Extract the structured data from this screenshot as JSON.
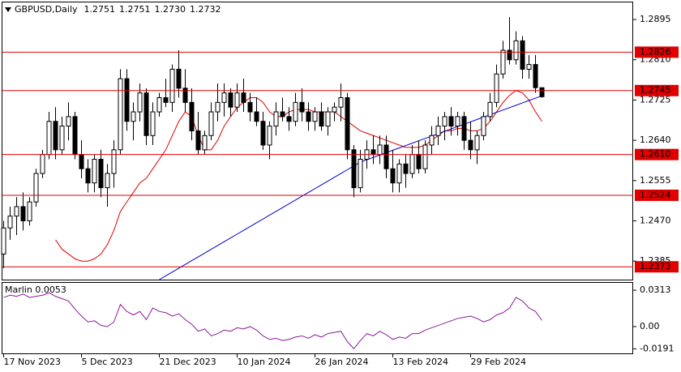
{
  "chart_data": [
    {
      "type": "candlestick",
      "title": "GBPUSD,Daily",
      "title_values": [
        "1.2751",
        "1.2751",
        "1.2730",
        "1.2732"
      ],
      "categories": [
        "17 Nov 2023",
        null,
        null,
        null,
        null,
        null,
        null,
        null,
        null,
        null,
        null,
        null,
        "5 Dec 2023",
        null,
        null,
        null,
        null,
        null,
        null,
        null,
        null,
        null,
        null,
        null,
        "21 Dec 2023",
        null,
        null,
        null,
        null,
        null,
        null,
        null,
        null,
        null,
        null,
        null,
        "10 Jan 2024",
        null,
        null,
        null,
        null,
        null,
        null,
        null,
        null,
        null,
        null,
        null,
        "26 Jan 2024",
        null,
        null,
        null,
        null,
        null,
        null,
        null,
        null,
        null,
        null,
        null,
        "13 Feb 2024",
        null,
        null,
        null,
        null,
        null,
        null,
        null,
        null,
        null,
        null,
        null,
        "29 Feb 2024",
        null,
        null,
        null,
        null,
        null,
        null,
        null,
        null,
        null,
        null,
        null
      ],
      "ohlc": [
        [
          1.24,
          1.247,
          1.237,
          1.2455
        ],
        [
          1.2455,
          1.25,
          1.243,
          1.248
        ],
        [
          1.248,
          1.252,
          1.244,
          1.25
        ],
        [
          1.25,
          1.253,
          1.245,
          1.247
        ],
        [
          1.247,
          1.252,
          1.246,
          1.251
        ],
        [
          1.251,
          1.258,
          1.25,
          1.257
        ],
        [
          1.257,
          1.262,
          1.256,
          1.261
        ],
        [
          1.261,
          1.27,
          1.26,
          1.268
        ],
        [
          1.268,
          1.271,
          1.26,
          1.262
        ],
        [
          1.262,
          1.269,
          1.261,
          1.267
        ],
        [
          1.267,
          1.272,
          1.264,
          1.269
        ],
        [
          1.269,
          1.27,
          1.26,
          1.261
        ],
        [
          1.261,
          1.264,
          1.256,
          1.258
        ],
        [
          1.258,
          1.26,
          1.253,
          1.255
        ],
        [
          1.255,
          1.261,
          1.253,
          1.26
        ],
        [
          1.26,
          1.262,
          1.252,
          1.254
        ],
        [
          1.254,
          1.259,
          1.25,
          1.257
        ],
        [
          1.257,
          1.264,
          1.254,
          1.262
        ],
        [
          1.262,
          1.279,
          1.261,
          1.277
        ],
        [
          1.277,
          1.279,
          1.266,
          1.268
        ],
        [
          1.268,
          1.272,
          1.264,
          1.27
        ],
        [
          1.27,
          1.276,
          1.268,
          1.274
        ],
        [
          1.274,
          1.275,
          1.263,
          1.265
        ],
        [
          1.265,
          1.272,
          1.263,
          1.27
        ],
        [
          1.27,
          1.274,
          1.269,
          1.273
        ],
        [
          1.273,
          1.277,
          1.271,
          1.272
        ],
        [
          1.272,
          1.28,
          1.27,
          1.279
        ],
        [
          1.279,
          1.283,
          1.273,
          1.275
        ],
        [
          1.275,
          1.279,
          1.27,
          1.272
        ],
        [
          1.272,
          1.275,
          1.264,
          1.266
        ],
        [
          1.266,
          1.27,
          1.261,
          1.262
        ],
        [
          1.262,
          1.266,
          1.261,
          1.265
        ],
        [
          1.265,
          1.272,
          1.264,
          1.27
        ],
        [
          1.27,
          1.276,
          1.268,
          1.272
        ],
        [
          1.272,
          1.276,
          1.269,
          1.274
        ],
        [
          1.274,
          1.275,
          1.269,
          1.271
        ],
        [
          1.271,
          1.276,
          1.27,
          1.274
        ],
        [
          1.274,
          1.277,
          1.27,
          1.272
        ],
        [
          1.272,
          1.274,
          1.268,
          1.27
        ],
        [
          1.27,
          1.273,
          1.267,
          1.268
        ],
        [
          1.268,
          1.27,
          1.262,
          1.263
        ],
        [
          1.263,
          1.268,
          1.26,
          1.267
        ],
        [
          1.267,
          1.272,
          1.265,
          1.27
        ],
        [
          1.27,
          1.273,
          1.268,
          1.269
        ],
        [
          1.269,
          1.271,
          1.266,
          1.268
        ],
        [
          1.268,
          1.274,
          1.267,
          1.272
        ],
        [
          1.272,
          1.275,
          1.268,
          1.27
        ],
        [
          1.27,
          1.272,
          1.266,
          1.268
        ],
        [
          1.268,
          1.271,
          1.266,
          1.27
        ],
        [
          1.27,
          1.272,
          1.266,
          1.267
        ],
        [
          1.267,
          1.271,
          1.265,
          1.27
        ],
        [
          1.27,
          1.272,
          1.268,
          1.271
        ],
        [
          1.271,
          1.276,
          1.268,
          1.273
        ],
        [
          1.273,
          1.274,
          1.26,
          1.262
        ],
        [
          1.262,
          1.263,
          1.252,
          1.254
        ],
        [
          1.254,
          1.262,
          1.253,
          1.26
        ],
        [
          1.26,
          1.264,
          1.258,
          1.262
        ],
        [
          1.262,
          1.265,
          1.259,
          1.261
        ],
        [
          1.261,
          1.265,
          1.259,
          1.263
        ],
        [
          1.263,
          1.265,
          1.256,
          1.258
        ],
        [
          1.258,
          1.262,
          1.253,
          1.255
        ],
        [
          1.255,
          1.26,
          1.253,
          1.259
        ],
        [
          1.259,
          1.261,
          1.254,
          1.257
        ],
        [
          1.257,
          1.263,
          1.256,
          1.261
        ],
        [
          1.261,
          1.264,
          1.257,
          1.258
        ],
        [
          1.258,
          1.264,
          1.257,
          1.263
        ],
        [
          1.263,
          1.267,
          1.261,
          1.265
        ],
        [
          1.265,
          1.269,
          1.263,
          1.267
        ],
        [
          1.267,
          1.27,
          1.264,
          1.269
        ],
        [
          1.269,
          1.271,
          1.265,
          1.267
        ],
        [
          1.267,
          1.27,
          1.265,
          1.269
        ],
        [
          1.269,
          1.27,
          1.262,
          1.264
        ],
        [
          1.264,
          1.268,
          1.26,
          1.262
        ],
        [
          1.262,
          1.266,
          1.259,
          1.265
        ],
        [
          1.265,
          1.27,
          1.264,
          1.269
        ],
        [
          1.269,
          1.274,
          1.268,
          1.272
        ],
        [
          1.272,
          1.28,
          1.271,
          1.278
        ],
        [
          1.278,
          1.285,
          1.277,
          1.283
        ],
        [
          1.283,
          1.29,
          1.28,
          1.281
        ],
        [
          1.281,
          1.287,
          1.28,
          1.285
        ],
        [
          1.285,
          1.286,
          1.277,
          1.279
        ],
        [
          1.279,
          1.282,
          1.277,
          1.28
        ],
        [
          1.28,
          1.282,
          1.274,
          1.2751
        ],
        [
          1.2751,
          1.2751,
          1.273,
          1.2732
        ]
      ],
      "lines": [
        {
          "color": "#e00000",
          "values": [
            null,
            null,
            null,
            null,
            null,
            null,
            null,
            null,
            1.243,
            1.241,
            1.24,
            1.239,
            1.2385,
            1.2385,
            1.239,
            1.24,
            1.242,
            1.245,
            1.249,
            1.251,
            1.253,
            1.255,
            1.256,
            1.258,
            1.26,
            1.262,
            1.265,
            1.268,
            1.27,
            1.269,
            1.265,
            1.262,
            1.262,
            1.264,
            1.267,
            1.269,
            1.271,
            1.272,
            1.273,
            1.273,
            1.272,
            1.27,
            1.269,
            1.269,
            1.27,
            1.2705,
            1.2705,
            1.2705,
            1.27,
            1.27,
            1.27,
            1.27,
            1.269,
            1.268,
            1.267,
            1.266,
            1.2655,
            1.265,
            1.2645,
            1.264,
            1.2635,
            1.263,
            1.2625,
            1.2625,
            1.2625,
            1.263,
            1.264,
            1.265,
            1.266,
            1.266,
            1.2665,
            1.2665,
            1.266,
            1.266,
            1.2665,
            1.268,
            1.27,
            1.272,
            1.2735,
            1.2745,
            1.274,
            1.2725,
            1.27,
            1.268
          ]
        },
        {
          "color": "#0000d0",
          "values": [
            null,
            null,
            null,
            null,
            null,
            null,
            null,
            null,
            null,
            null,
            null,
            null,
            null,
            null,
            null,
            null,
            null,
            null,
            null,
            null,
            null,
            null,
            null,
            null,
            1.2346,
            1.2354,
            1.2362,
            1.237,
            1.2378,
            1.2386,
            1.2394,
            1.2402,
            1.241,
            1.2418,
            1.2426,
            1.2434,
            1.2442,
            1.245,
            1.2458,
            1.2466,
            1.2474,
            1.2482,
            1.249,
            1.2498,
            1.2506,
            1.2514,
            1.2522,
            1.253,
            1.2538,
            1.2546,
            1.2554,
            1.2562,
            1.257,
            1.2578,
            1.2586,
            1.2594,
            1.2599,
            1.2604,
            1.2609,
            1.2614,
            1.2619,
            1.2624,
            1.2629,
            1.2634,
            1.2639,
            1.2644,
            1.2649,
            1.2654,
            1.2659,
            1.2664,
            1.2669,
            1.2674,
            1.2679,
            1.2684,
            1.2689,
            1.2694,
            1.2699,
            1.2704,
            1.2709,
            1.2714,
            1.2719,
            1.2724,
            1.2729,
            1.2734
          ]
        }
      ],
      "levels": [
        {
          "value": 1.2826,
          "label": "1.2826"
        },
        {
          "value": 1.2745,
          "label": "1.2745"
        },
        {
          "value": 1.261,
          "label": "1.2610"
        },
        {
          "value": 1.2524,
          "label": "1.2524"
        },
        {
          "value": 1.2373,
          "label": "1.2373"
        }
      ],
      "level_color": "#e00000",
      "ylim": [
        1.2346,
        1.2931
      ],
      "yticks": [
        1.2895,
        {
          "value": 1.281,
          "label": "1.2810"
        },
        1.2725,
        {
          "value": 1.264,
          "label": "1.2640"
        },
        1.2555,
        {
          "value": 1.247,
          "label": "1.2470"
        },
        1.2385
      ]
    },
    {
      "type": "line",
      "title": "Marlin 0.0053",
      "color": "#8b1a9a",
      "values": [
        0.025,
        0.027,
        0.026,
        0.028,
        0.025,
        0.026,
        0.027,
        0.029,
        0.026,
        0.024,
        0.022,
        0.015,
        0.009,
        0.004,
        0.005,
        0.001,
        0.0,
        0.004,
        0.019,
        0.013,
        0.01,
        0.013,
        0.006,
        0.016,
        0.013,
        0.012,
        0.009,
        0.011,
        0.006,
        0.002,
        -0.004,
        -0.002,
        -0.008,
        -0.006,
        -0.003,
        -0.004,
        -0.001,
        -0.002,
        0.0,
        -0.003,
        -0.008,
        -0.011,
        -0.01,
        -0.012,
        -0.011,
        -0.009,
        -0.008,
        -0.01,
        -0.007,
        -0.009,
        -0.006,
        -0.005,
        -0.004,
        -0.013,
        -0.019,
        -0.012,
        -0.006,
        -0.008,
        -0.004,
        -0.007,
        -0.011,
        -0.009,
        -0.01,
        -0.006,
        -0.006,
        -0.003,
        -0.001,
        0.001,
        0.003,
        0.005,
        0.007,
        0.008,
        0.009,
        0.007,
        0.004,
        0.006,
        0.01,
        0.012,
        0.016,
        0.025,
        0.022,
        0.016,
        0.013,
        0.0053
      ],
      "ylim": [
        -0.023,
        0.0376
      ],
      "yticks": [
        0.0313,
        {
          "value": 0,
          "label": "0.00"
        },
        -0.0191
      ]
    }
  ]
}
